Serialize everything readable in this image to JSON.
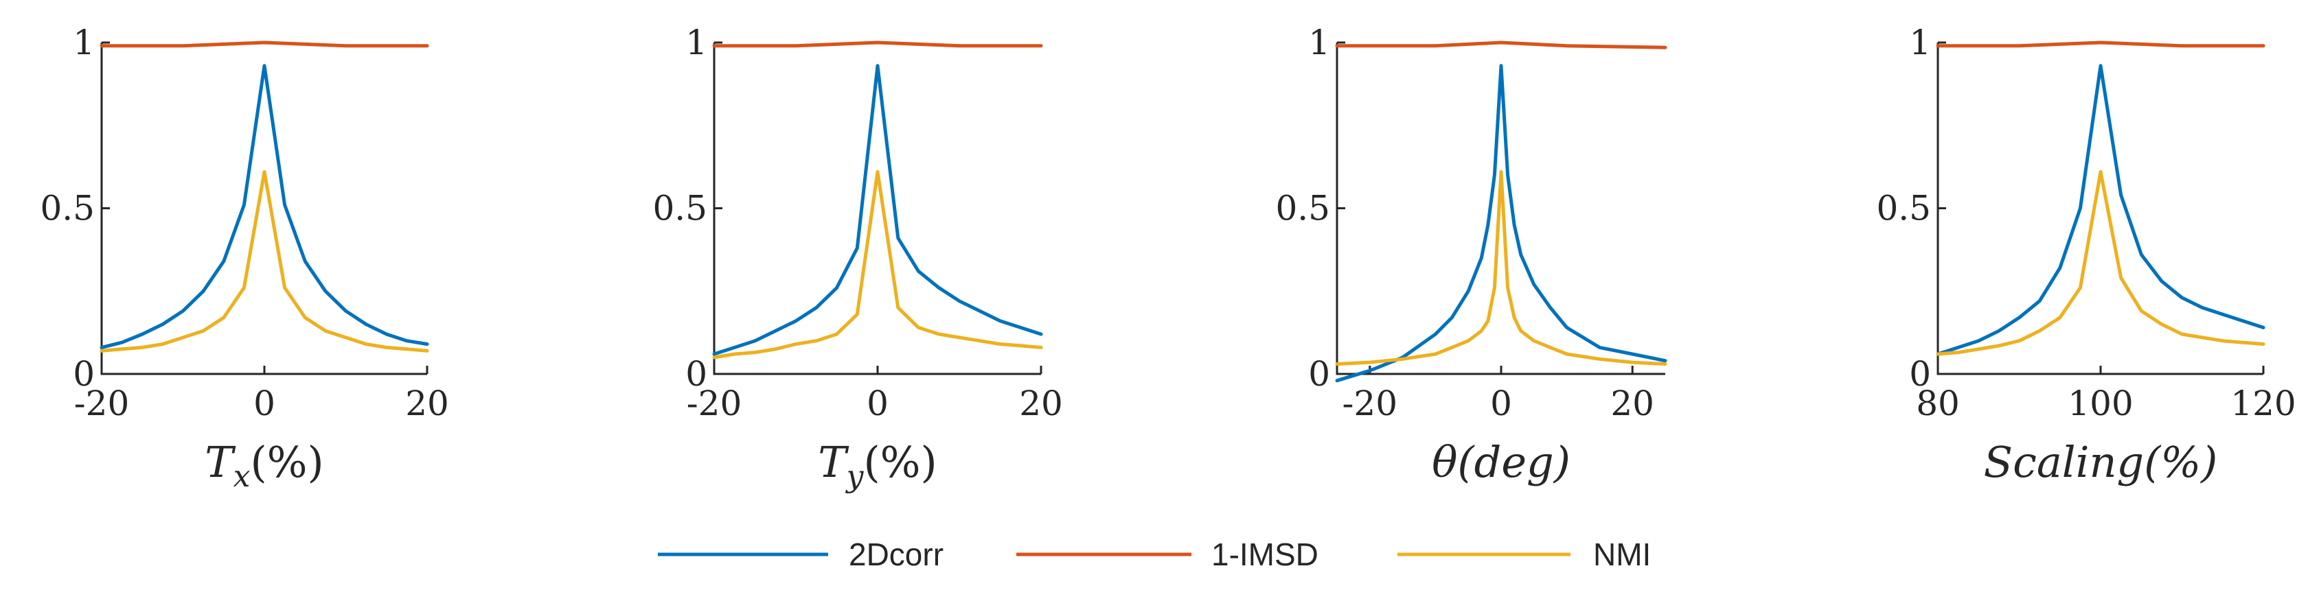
{
  "chart_data": {
    "type": "line",
    "series_styles": [
      {
        "name": "2Dcorr",
        "color": "#0072BD"
      },
      {
        "name": "1-IMSD",
        "color": "#D95319"
      },
      {
        "name": "NMI",
        "color": "#EDB120"
      }
    ],
    "legend": {
      "placement": "bottom-center",
      "entries": [
        "2Dcorr",
        "1-IMSD",
        "NMI"
      ]
    },
    "subplots": [
      {
        "xlabel": "T_x(%)",
        "xlabel_parts": {
          "main": "T",
          "sub": "x",
          "rest": "(%)"
        },
        "xlim": [
          -20,
          20
        ],
        "ylim": [
          0,
          1
        ],
        "xticks": [
          "-20",
          "0",
          "20"
        ],
        "xtick_values": [
          -20,
          0,
          20
        ],
        "yticks": [
          "0",
          "0.5",
          "1"
        ],
        "ytick_values": [
          0,
          0.5,
          1
        ],
        "series": [
          {
            "name": "2Dcorr",
            "x": [
              -20,
              -17.5,
              -15,
              -12.5,
              -10,
              -7.5,
              -5,
              -2.5,
              0,
              2.5,
              5,
              7.5,
              10,
              12.5,
              15,
              17.5,
              20
            ],
            "values": [
              0.08,
              0.095,
              0.12,
              0.15,
              0.19,
              0.25,
              0.34,
              0.51,
              0.93,
              0.51,
              0.34,
              0.25,
              0.19,
              0.15,
              0.12,
              0.1,
              0.09
            ]
          },
          {
            "name": "1-IMSD",
            "x": [
              -20,
              -10,
              -5,
              0,
              5,
              10,
              20
            ],
            "values": [
              0.99,
              0.99,
              0.995,
              1.0,
              0.995,
              0.99,
              0.99
            ]
          },
          {
            "name": "NMI",
            "x": [
              -20,
              -17.5,
              -15,
              -12.5,
              -10,
              -7.5,
              -5,
              -2.5,
              0,
              2.5,
              5,
              7.5,
              10,
              12.5,
              15,
              17.5,
              20
            ],
            "values": [
              0.07,
              0.075,
              0.08,
              0.09,
              0.11,
              0.13,
              0.17,
              0.26,
              0.61,
              0.26,
              0.17,
              0.13,
              0.11,
              0.09,
              0.08,
              0.075,
              0.07
            ]
          }
        ]
      },
      {
        "xlabel": "T_y(%)",
        "xlabel_parts": {
          "main": "T",
          "sub": "y",
          "rest": "(%)"
        },
        "xlim": [
          -20,
          20
        ],
        "ylim": [
          0,
          1
        ],
        "xticks": [
          "-20",
          "0",
          "20"
        ],
        "xtick_values": [
          -20,
          0,
          20
        ],
        "yticks": [
          "0",
          "0.5",
          "1"
        ],
        "ytick_values": [
          0,
          0.5,
          1
        ],
        "series": [
          {
            "name": "2Dcorr",
            "x": [
              -20,
              -17.5,
              -15,
              -12.5,
              -10,
              -7.5,
              -5,
              -2.5,
              0,
              2.5,
              5,
              7.5,
              10,
              12.5,
              15,
              17.5,
              20
            ],
            "values": [
              0.06,
              0.08,
              0.1,
              0.13,
              0.16,
              0.2,
              0.26,
              0.38,
              0.93,
              0.41,
              0.31,
              0.26,
              0.22,
              0.19,
              0.16,
              0.14,
              0.12
            ]
          },
          {
            "name": "1-IMSD",
            "x": [
              -20,
              -10,
              -5,
              0,
              5,
              10,
              20
            ],
            "values": [
              0.99,
              0.99,
              0.995,
              1.0,
              0.995,
              0.99,
              0.99
            ]
          },
          {
            "name": "NMI",
            "x": [
              -20,
              -17.5,
              -15,
              -12.5,
              -10,
              -7.5,
              -5,
              -2.5,
              0,
              2.5,
              5,
              7.5,
              10,
              12.5,
              15,
              17.5,
              20
            ],
            "values": [
              0.05,
              0.06,
              0.065,
              0.075,
              0.09,
              0.1,
              0.12,
              0.18,
              0.61,
              0.2,
              0.14,
              0.12,
              0.11,
              0.1,
              0.09,
              0.085,
              0.08
            ]
          }
        ]
      },
      {
        "xlabel": "θ(deg)",
        "xlabel_parts": {
          "main": "θ(deg)",
          "sub": "",
          "rest": ""
        },
        "xlim": [
          -25,
          25
        ],
        "ylim": [
          0,
          1
        ],
        "xticks": [
          "-20",
          "0",
          "20"
        ],
        "xtick_values": [
          -20,
          0,
          20
        ],
        "yticks": [
          "0",
          "0.5",
          "1"
        ],
        "ytick_values": [
          0,
          0.5,
          1
        ],
        "series": [
          {
            "name": "2Dcorr",
            "x": [
              -25,
              -20,
              -15,
              -10,
              -7.5,
              -5,
              -3,
              -2,
              -1,
              0,
              1,
              2,
              3,
              5,
              7.5,
              10,
              15,
              20,
              25
            ],
            "values": [
              -0.02,
              0.01,
              0.05,
              0.12,
              0.17,
              0.25,
              0.35,
              0.45,
              0.6,
              0.93,
              0.6,
              0.45,
              0.36,
              0.27,
              0.2,
              0.14,
              0.08,
              0.06,
              0.04
            ]
          },
          {
            "name": "1-IMSD",
            "x": [
              -25,
              -10,
              -5,
              0,
              5,
              10,
              25
            ],
            "values": [
              0.99,
              0.99,
              0.995,
              1.0,
              0.995,
              0.99,
              0.985
            ]
          },
          {
            "name": "NMI",
            "x": [
              -25,
              -20,
              -15,
              -10,
              -7.5,
              -5,
              -3,
              -2,
              -1,
              0,
              1,
              2,
              3,
              5,
              7.5,
              10,
              15,
              20,
              25
            ],
            "values": [
              0.03,
              0.035,
              0.045,
              0.06,
              0.08,
              0.1,
              0.13,
              0.16,
              0.26,
              0.61,
              0.26,
              0.17,
              0.13,
              0.1,
              0.08,
              0.06,
              0.045,
              0.035,
              0.03
            ]
          }
        ]
      },
      {
        "xlabel": "Scaling(%)",
        "xlabel_parts": {
          "main": "Scaling(%)",
          "sub": "",
          "rest": ""
        },
        "xlim": [
          80,
          120
        ],
        "ylim": [
          0,
          1
        ],
        "xticks": [
          "80",
          "100",
          "120"
        ],
        "xtick_values": [
          80,
          100,
          120
        ],
        "yticks": [
          "0",
          "0.5",
          "1"
        ],
        "ytick_values": [
          0,
          0.5,
          1
        ],
        "series": [
          {
            "name": "2Dcorr",
            "x": [
              80,
              82.5,
              85,
              87.5,
              90,
              92.5,
              95,
              97.5,
              100,
              102.5,
              105,
              107.5,
              110,
              112.5,
              115,
              117.5,
              120
            ],
            "values": [
              0.06,
              0.08,
              0.1,
              0.13,
              0.17,
              0.22,
              0.32,
              0.5,
              0.93,
              0.54,
              0.36,
              0.28,
              0.23,
              0.2,
              0.18,
              0.16,
              0.14
            ]
          },
          {
            "name": "1-IMSD",
            "x": [
              80,
              90,
              95,
              100,
              105,
              110,
              120
            ],
            "values": [
              0.99,
              0.99,
              0.995,
              1.0,
              0.995,
              0.99,
              0.99
            ]
          },
          {
            "name": "NMI",
            "x": [
              80,
              82.5,
              85,
              87.5,
              90,
              92.5,
              95,
              97.5,
              100,
              102.5,
              105,
              107.5,
              110,
              112.5,
              115,
              117.5,
              120
            ],
            "values": [
              0.06,
              0.065,
              0.075,
              0.085,
              0.1,
              0.13,
              0.17,
              0.26,
              0.61,
              0.29,
              0.19,
              0.15,
              0.12,
              0.11,
              0.1,
              0.095,
              0.09
            ]
          }
        ]
      }
    ]
  }
}
